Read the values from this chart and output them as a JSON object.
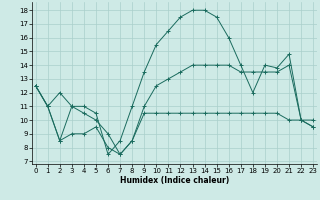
{
  "xlabel": "Humidex (Indice chaleur)",
  "bg_color": "#ceeae6",
  "grid_color": "#aacfcb",
  "line_color": "#1a6b5e",
  "x_ticks": [
    0,
    1,
    2,
    3,
    4,
    5,
    6,
    7,
    8,
    9,
    10,
    11,
    12,
    13,
    14,
    15,
    16,
    17,
    18,
    19,
    20,
    21,
    22,
    23
  ],
  "y_ticks": [
    7,
    8,
    9,
    10,
    11,
    12,
    13,
    14,
    15,
    16,
    17,
    18
  ],
  "ylim": [
    6.8,
    18.6
  ],
  "xlim": [
    -0.3,
    23.3
  ],
  "series": [
    {
      "x": [
        0,
        1,
        2,
        3,
        4,
        5,
        6,
        7,
        8,
        9,
        10,
        11,
        12,
        13,
        14,
        15,
        16,
        17,
        18,
        19,
        20,
        21,
        22,
        23
      ],
      "y": [
        12.5,
        11,
        12,
        11,
        11,
        10.5,
        7.5,
        8.5,
        11,
        13.5,
        15.5,
        16.5,
        17.5,
        18,
        18,
        17.5,
        16,
        14,
        12,
        14,
        13.8,
        14.8,
        10,
        9.5
      ]
    },
    {
      "x": [
        0,
        1,
        2,
        3,
        4,
        5,
        6,
        7,
        8,
        9,
        10,
        11,
        12,
        13,
        14,
        15,
        16,
        17,
        18,
        19,
        20,
        21,
        22,
        23
      ],
      "y": [
        12.5,
        11,
        8.5,
        9,
        9,
        9.5,
        8,
        7.5,
        8.5,
        10.5,
        10.5,
        10.5,
        10.5,
        10.5,
        10.5,
        10.5,
        10.5,
        10.5,
        10.5,
        10.5,
        10.5,
        10,
        10,
        10
      ]
    },
    {
      "x": [
        0,
        1,
        2,
        3,
        4,
        5,
        6,
        7,
        8,
        9,
        10,
        11,
        12,
        13,
        14,
        15,
        16,
        17,
        18,
        19,
        20,
        21,
        22,
        23
      ],
      "y": [
        12.5,
        11,
        8.5,
        11,
        10.5,
        10,
        9,
        7.5,
        8.5,
        11,
        12.5,
        13,
        13.5,
        14,
        14,
        14,
        14,
        13.5,
        13.5,
        13.5,
        13.5,
        14,
        10,
        9.5
      ]
    }
  ]
}
